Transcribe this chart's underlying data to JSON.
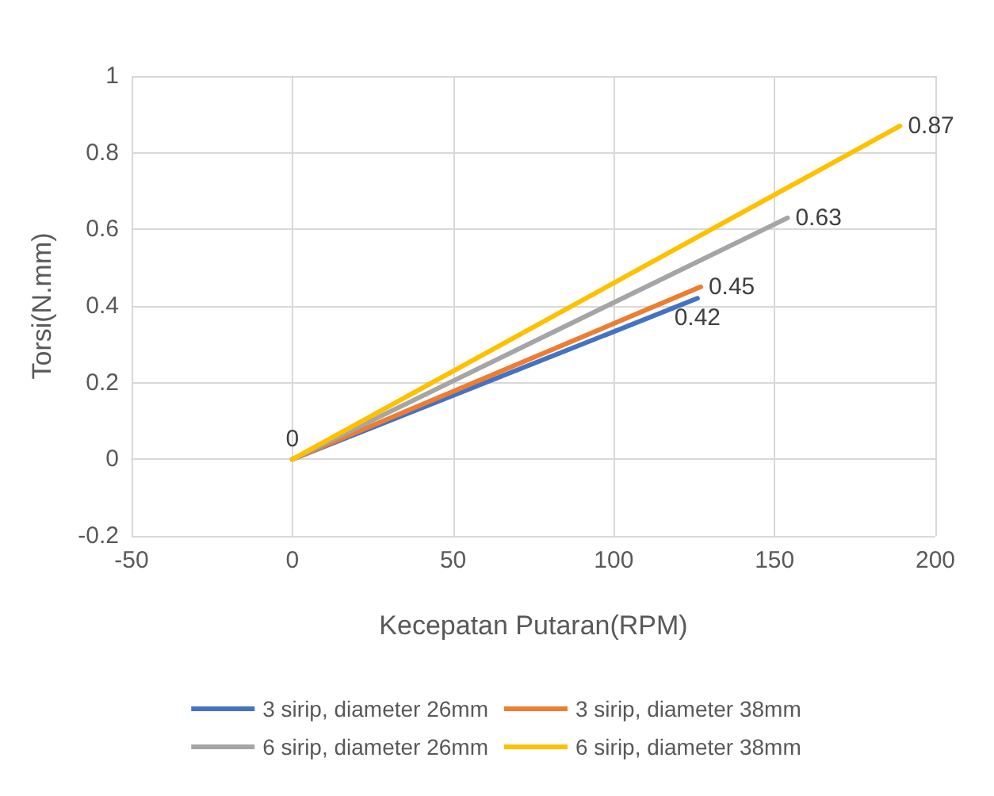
{
  "chart_data": {
    "type": "line",
    "xlabel": "Kecepatan Putaran(RPM)",
    "ylabel": "Torsi(N.mm)",
    "xlim": [
      -50,
      200
    ],
    "xticks": [
      -50,
      0,
      50,
      100,
      150,
      200
    ],
    "ylim": [
      -0.2,
      1
    ],
    "yticks": [
      -0.2,
      0,
      0.2,
      0.4,
      0.6,
      0.8,
      1
    ],
    "series": [
      {
        "name": "3 sirip, diameter 26mm",
        "color": "#4472c4",
        "x": [
          0,
          126
        ],
        "values": [
          0,
          0.42
        ],
        "value_labels": [
          "0",
          "0.42"
        ]
      },
      {
        "name": "3 sirip, diameter 38mm",
        "color": "#ed7d31",
        "x": [
          0,
          127
        ],
        "values": [
          0,
          0.45
        ],
        "value_labels": [
          null,
          "0.45"
        ]
      },
      {
        "name": "6 sirip, diameter 26mm",
        "color": "#a5a5a5",
        "x": [
          0,
          154
        ],
        "values": [
          0,
          0.63
        ],
        "value_labels": [
          null,
          "0.63"
        ]
      },
      {
        "name": "6 sirip, diameter 38mm",
        "color": "#ffc000",
        "x": [
          0,
          189
        ],
        "values": [
          0,
          0.87
        ],
        "value_labels": [
          null,
          "0.87"
        ]
      }
    ],
    "grid": true,
    "legend": "bottom",
    "marker": "none",
    "line_style": "solid"
  }
}
